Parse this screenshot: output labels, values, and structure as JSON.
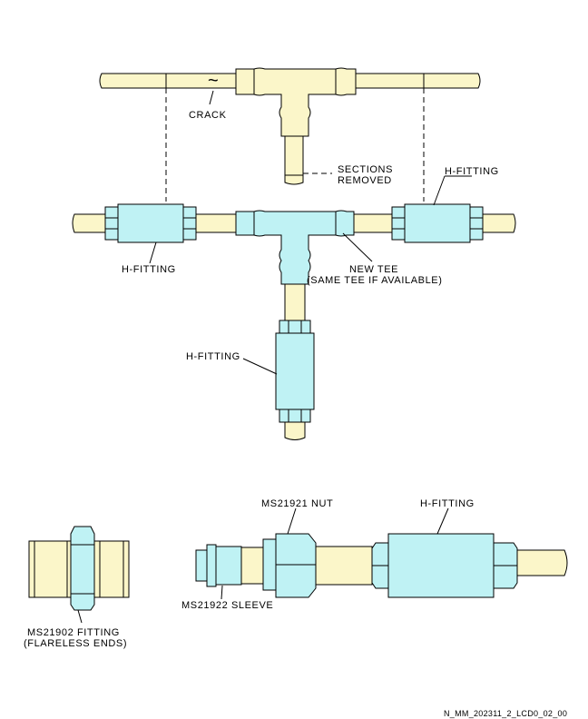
{
  "labels": {
    "crack": "CRACK",
    "sections_removed_1": "SECTIONS",
    "sections_removed_2": "REMOVED",
    "h_fitting": "H-FITTING",
    "new_tee_1": "NEW TEE",
    "new_tee_2": "(SAME TEE IF AVAILABLE)",
    "ms21921_nut": "MS21921 NUT",
    "ms21922_sleeve": "MS21922 SLEEVE",
    "ms21902_fitting_1": "MS21902 FITTING",
    "ms21902_fitting_2": "(FLARELESS ENDS)",
    "crack_symbol": "~"
  },
  "footer": {
    "drawing_id": "N_MM_202311_2_LCD0_02_00"
  },
  "colors": {
    "tube": "#fbf6c9",
    "fitting": "#bff2f4",
    "line": "#000000"
  }
}
